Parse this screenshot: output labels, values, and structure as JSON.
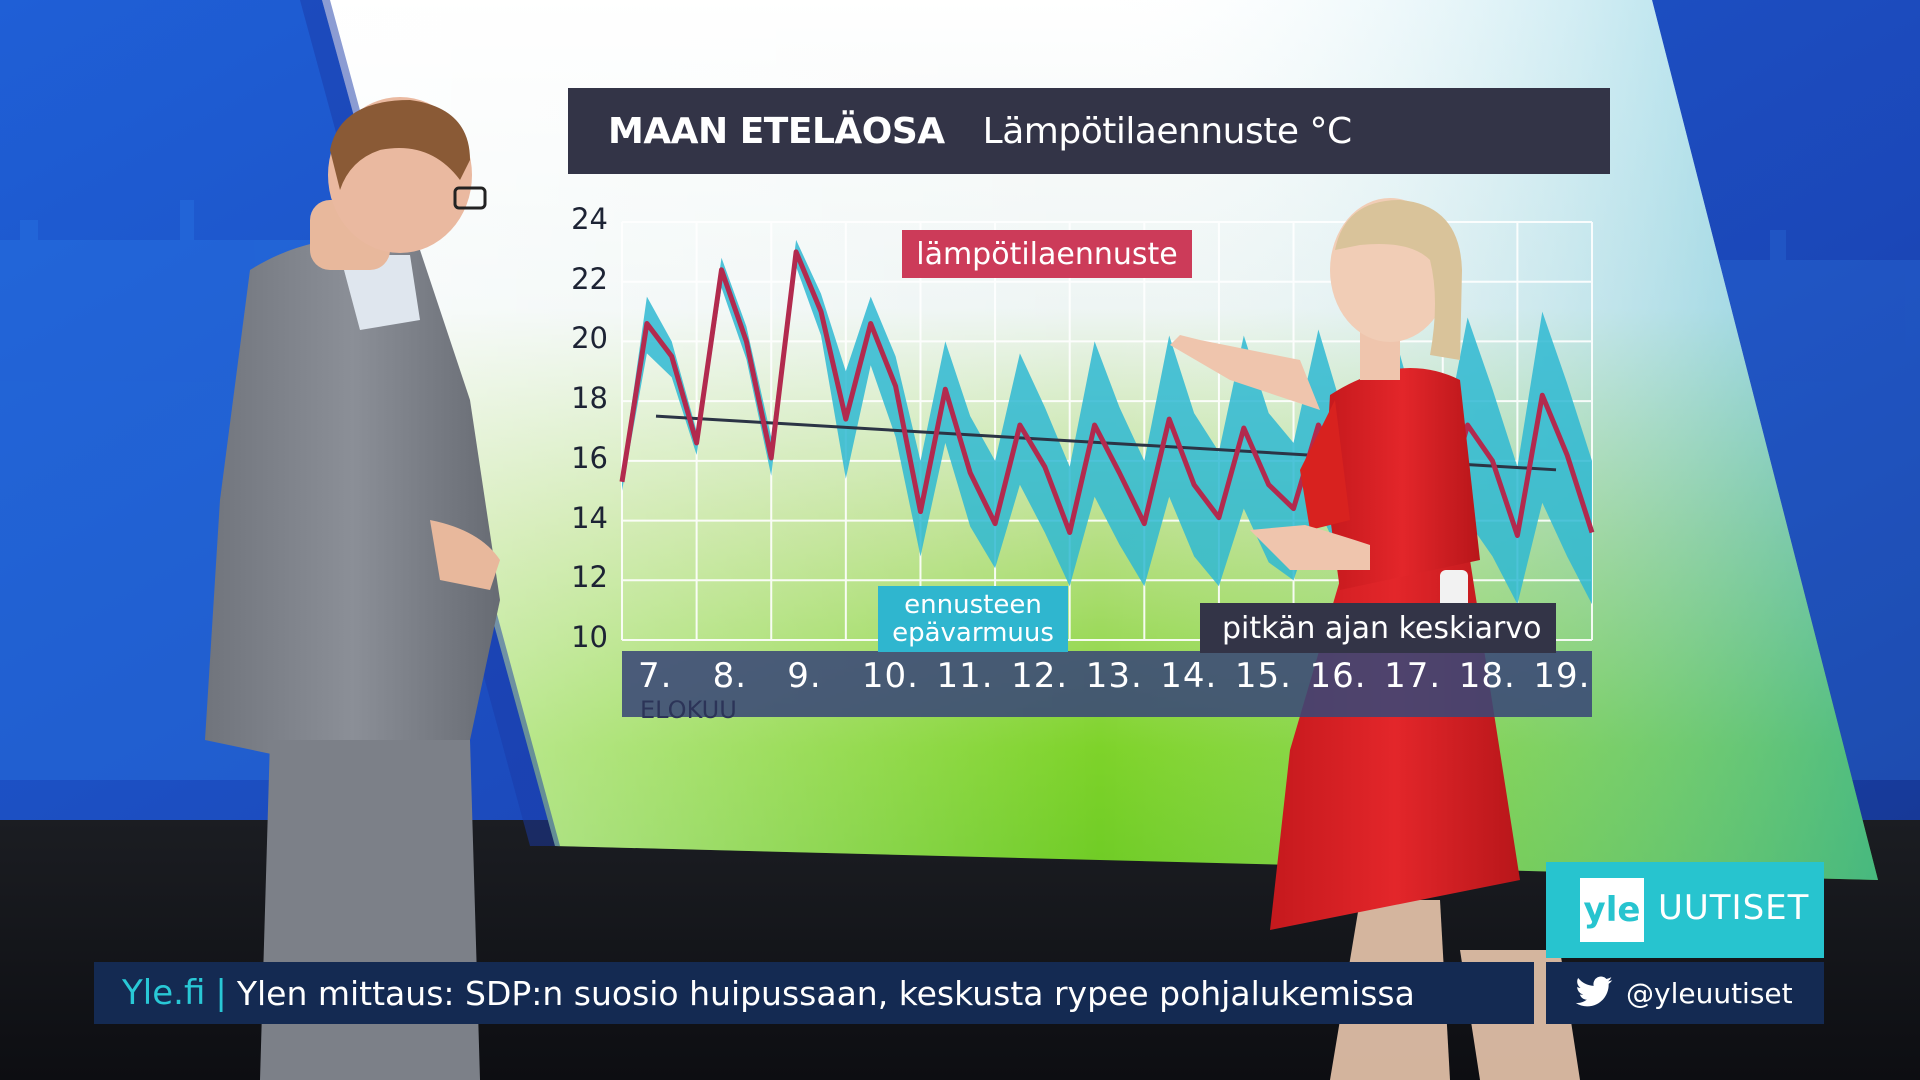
{
  "chart": {
    "title": "MAAN ETELÄOSA",
    "subtitle": "Lämpötilaennuste °C",
    "month": "ELOKUU",
    "y_ticks": [
      "24",
      "22",
      "20",
      "18",
      "16",
      "14",
      "12",
      "10"
    ],
    "dates": [
      "7.",
      "8.",
      "9.",
      "10.",
      "11.",
      "12.",
      "13.",
      "14.",
      "15.",
      "16.",
      "17.",
      "18.",
      "19."
    ],
    "legend_forecast": "lämpötilaennuste",
    "legend_uncertainty": "ennusteen epävarmuus",
    "legend_longterm": "pitkän ajan keskiarvo"
  },
  "chart_data": {
    "type": "line",
    "ylim": [
      10,
      24
    ],
    "series": [
      {
        "name": "lämpötilaennuste",
        "values": [
          15.3,
          20.6,
          19.5,
          16.6,
          22.4,
          20.0,
          16.1,
          23.0,
          21.0,
          17.4,
          20.6,
          18.5,
          14.3,
          18.4,
          15.6,
          13.9,
          17.2,
          15.8,
          13.6,
          17.2,
          15.6,
          13.9,
          17.4,
          15.2,
          14.1,
          17.1,
          15.2,
          14.4,
          17.2,
          15.3,
          14.2,
          17.1,
          15.0,
          14.3,
          17.2,
          16.0,
          13.5,
          18.2,
          16.2,
          13.6
        ]
      },
      {
        "name": "ennusteen epävarmuus",
        "upper": [
          15.6,
          21.5,
          20.0,
          17.0,
          22.8,
          20.5,
          16.8,
          23.4,
          21.6,
          19.0,
          21.5,
          19.5,
          16.0,
          20.0,
          17.5,
          16.0,
          19.6,
          17.8,
          15.8,
          20.0,
          17.8,
          16.0,
          20.2,
          17.6,
          16.3,
          20.2,
          17.6,
          16.6,
          20.4,
          17.6,
          16.5,
          20.4,
          17.4,
          16.5,
          20.8,
          18.4,
          15.8,
          21.0,
          18.6,
          16.0
        ],
        "lower": [
          15.0,
          19.6,
          18.8,
          16.2,
          21.8,
          19.4,
          15.5,
          22.5,
          20.2,
          15.4,
          19.2,
          16.8,
          12.8,
          16.6,
          13.8,
          12.4,
          15.2,
          13.6,
          11.8,
          14.8,
          13.2,
          11.8,
          14.8,
          12.8,
          11.8,
          14.4,
          12.6,
          12.0,
          14.4,
          12.6,
          11.8,
          14.2,
          12.4,
          11.6,
          14.0,
          12.8,
          11.2,
          14.6,
          12.8,
          11.2
        ]
      },
      {
        "name": "pitkän ajan keskiarvo",
        "start": 17.5,
        "end": 15.7
      }
    ]
  },
  "ticker": {
    "site": "Yle.fi",
    "separator": "|",
    "headline": "Ylen mittaus: SDP:n suosio huipussaan, keskusta rypee pohjalukemissa"
  },
  "branding": {
    "logo": "yle",
    "name": "UUTISET",
    "twitter": "@yleuutiset"
  },
  "colors": {
    "forecast": "#b22a4e",
    "uncertainty": "#2fb8d2",
    "average": "#2b3445",
    "accent": "#27c4cf",
    "ticker_bg": "#142a52"
  }
}
